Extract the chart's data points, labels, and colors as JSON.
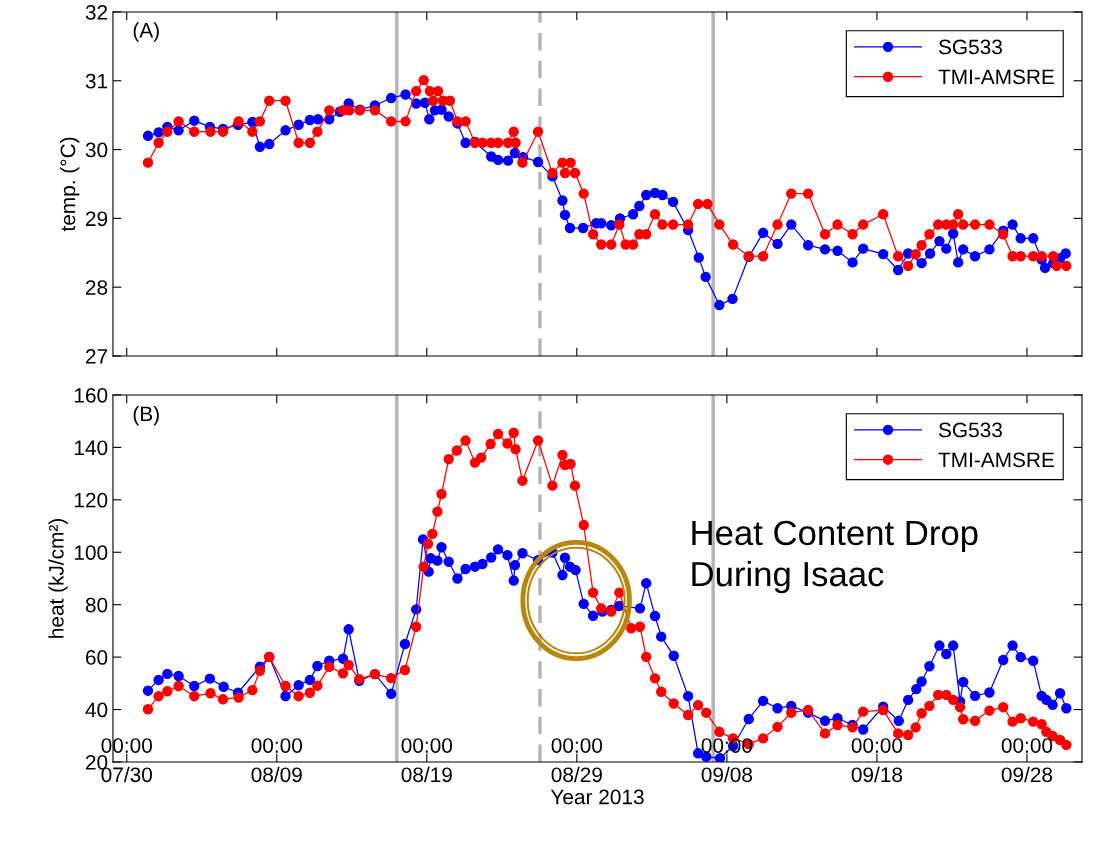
{
  "chart_data": [
    {
      "type": "line",
      "ylabel": "temp. (°C)",
      "annotations": [
        "(A)"
      ],
      "marker": "circle",
      "line_style": "solid",
      "legend": "top right",
      "grid": false,
      "tick_labels": "y",
      "xlim": [
        "2013-07-29T02:00",
        "2013-10-01T16:00"
      ],
      "ylim": [
        27,
        32
      ],
      "yticks": [
        27,
        28,
        29,
        30,
        31,
        32
      ],
      "xticks": [
        {
          "value": "2013-07-30",
          "label": null
        },
        {
          "value": "2013-08-09",
          "label": null
        },
        {
          "value": "2013-08-19",
          "label": null
        },
        {
          "value": "2013-08-29",
          "label": null
        },
        {
          "value": "2013-09-08",
          "label": null
        },
        {
          "value": "2013-09-18",
          "label": null
        },
        {
          "value": "2013-09-28",
          "label": null
        }
      ],
      "ref_lines": [
        {
          "axis": "x",
          "value": "2013-08-17",
          "color": "#b4b4b4",
          "line_style": "solid"
        },
        {
          "axis": "x",
          "value": "2013-08-26T13:00",
          "color": "#b4b4b4",
          "line_style": "dashed"
        },
        {
          "axis": "x",
          "value": "2013-09-07T02:00",
          "color": "#b4b4b4",
          "line_style": "solid"
        }
      ],
      "series": [
        {
          "name": "SG533",
          "color": "#0000ff",
          "x": [
            "2013-07-31T10:00",
            "2013-08-01T03:00",
            "2013-08-01T17:00",
            "2013-08-02T11:00",
            "2013-08-03T12:00",
            "2013-08-04T13:00",
            "2013-08-05T10:00",
            "2013-08-06T10:00",
            "2013-08-07T09:00",
            "2013-08-07T21:00",
            "2013-08-08T12:00",
            "2013-08-09T14:00",
            "2013-08-10T11:00",
            "2013-08-11T05:00",
            "2013-08-11T18:00",
            "2013-08-12T12:00",
            "2013-08-13T05:00",
            "2013-08-13T19:00",
            "2013-08-14T13:00",
            "2013-08-15T13:00",
            "2013-08-16T15:00",
            "2013-08-17T14:00",
            "2013-08-18T07:00",
            "2013-08-18T21:00",
            "2013-08-19T04:00",
            "2013-08-19T13:00",
            "2013-08-19T23:30",
            "2013-08-20T11:00",
            "2013-08-21T01:00",
            "2013-08-21T14:00",
            "2013-08-22T05:00",
            "2013-08-23T07:00",
            "2013-08-23T18:00",
            "2013-08-24T10:00",
            "2013-08-24T21:00",
            "2013-08-25T10:00",
            "2013-08-26T10:00",
            "2013-08-27T09:00",
            "2013-08-28T01:00",
            "2013-08-28T05:00",
            "2013-08-28T13:00",
            "2013-08-29T10:00",
            "2013-08-30T07:00",
            "2013-08-30T15:00",
            "2013-08-31T07:00",
            "2013-08-31T21:00",
            "2013-09-01T18:00",
            "2013-09-02T04:00",
            "2013-09-02T15:00",
            "2013-09-03T05:00",
            "2013-09-03T17:00",
            "2013-09-04T10:00",
            "2013-09-05T10:00",
            "2013-09-06T03:00",
            "2013-09-06T14:00",
            "2013-09-07T12:00",
            "2013-09-08T09:00",
            "2013-09-09T11:00",
            "2013-09-10T10:00",
            "2013-09-11T09:00",
            "2013-09-12T07:00",
            "2013-09-13T10:00",
            "2013-09-14T13:00",
            "2013-09-15T09:00",
            "2013-09-16T09:00",
            "2013-09-17T02:00",
            "2013-09-18T10:00",
            "2013-09-19T10:00",
            "2013-09-20T02:00",
            "2013-09-20T23:30",
            "2013-09-21T13:00",
            "2013-09-22T04:00",
            "2013-09-22T15:00",
            "2013-09-23T02:00",
            "2013-09-23T10:00",
            "2013-09-23T18:00",
            "2013-09-24T13:00",
            "2013-09-25T12:00",
            "2013-09-26T10:00",
            "2013-09-27T01:00",
            "2013-09-27T14:00",
            "2013-09-28T10:00",
            "2013-09-28T23:30",
            "2013-09-29T05:00",
            "2013-09-29T18:00",
            "2013-09-30T05:00",
            "2013-09-30T14:00"
          ],
          "values": [
            30.2,
            30.25,
            30.33,
            30.28,
            30.42,
            30.33,
            30.3,
            30.36,
            30.4,
            30.04,
            30.08,
            30.28,
            30.36,
            30.43,
            30.44,
            30.44,
            30.55,
            30.67,
            30.58,
            30.64,
            30.75,
            30.8,
            30.67,
            30.68,
            30.44,
            30.57,
            30.58,
            30.48,
            30.38,
            30.1,
            30.11,
            29.9,
            29.85,
            29.84,
            29.95,
            29.89,
            29.82,
            29.61,
            29.26,
            29.05,
            28.86,
            28.86,
            28.93,
            28.93,
            28.9,
            29.0,
            29.06,
            29.18,
            29.34,
            29.37,
            29.34,
            29.24,
            28.83,
            28.43,
            28.15,
            27.74,
            27.83,
            28.44,
            28.79,
            28.63,
            28.91,
            28.61,
            28.55,
            28.53,
            28.36,
            28.56,
            28.48,
            28.25,
            28.49,
            28.35,
            28.49,
            28.67,
            28.56,
            28.78,
            28.36,
            28.55,
            28.45,
            28.55,
            28.82,
            28.91,
            28.71,
            28.71,
            28.4,
            28.28,
            28.35,
            28.42,
            28.49
          ]
        },
        {
          "name": "TMI-AMSRE",
          "color": "#ff0000",
          "x": [
            "2013-07-31T10:00",
            "2013-08-01T03:00",
            "2013-08-01T17:00",
            "2013-08-02T11:00",
            "2013-08-03T12:00",
            "2013-08-04T14:00",
            "2013-08-05T10:00",
            "2013-08-06T11:00",
            "2013-08-07T09:00",
            "2013-08-07T21:00",
            "2013-08-08T12:00",
            "2013-08-09T14:00",
            "2013-08-10T11:00",
            "2013-08-11T05:00",
            "2013-08-11T17:00",
            "2013-08-12T12:00",
            "2013-08-13T10:00",
            "2013-08-13T20:00",
            "2013-08-14T13:00",
            "2013-08-15T13:00",
            "2013-08-16T15:00",
            "2013-08-17T14:00",
            "2013-08-18T07:00",
            "2013-08-18T19:00",
            "2013-08-19T05:00",
            "2013-08-19T10:00",
            "2013-08-19T18:00",
            "2013-08-20T02:00",
            "2013-08-20T13:00",
            "2013-08-21T01:00",
            "2013-08-21T14:00",
            "2013-08-22T05:00",
            "2013-08-22T17:00",
            "2013-08-23T07:00",
            "2013-08-23T18:00",
            "2013-08-24T10:00",
            "2013-08-24T19:00",
            "2013-08-24T22:00",
            "2013-08-25T09:00",
            "2013-08-26T10:00",
            "2013-08-27T09:00",
            "2013-08-28T01:00",
            "2013-08-28T05:00",
            "2013-08-28T14:00",
            "2013-08-28T21:00",
            "2013-08-29T11:00",
            "2013-08-30T02:00",
            "2013-08-30T15:00",
            "2013-08-31T07:00",
            "2013-08-31T20:00",
            "2013-09-01T06:00",
            "2013-09-01T18:00",
            "2013-09-02T04:00",
            "2013-09-02T15:00",
            "2013-09-03T05:00",
            "2013-09-03T17:00",
            "2013-09-04T10:00",
            "2013-09-05T10:00",
            "2013-09-06T02:00",
            "2013-09-06T17:00",
            "2013-09-07T12:00",
            "2013-09-08T10:00",
            "2013-09-09T11:00",
            "2013-09-10T10:00",
            "2013-09-11T09:00",
            "2013-09-12T07:00",
            "2013-09-13T10:00",
            "2013-09-14T13:00",
            "2013-09-15T09:00",
            "2013-09-16T09:00",
            "2013-09-17T02:00",
            "2013-09-18T10:00",
            "2013-09-19T10:00",
            "2013-09-20T02:00",
            "2013-09-20T14:00",
            "2013-09-20T23:30",
            "2013-09-21T12:00",
            "2013-09-22T02:00",
            "2013-09-22T15:00",
            "2013-09-23T02:00",
            "2013-09-23T10:00",
            "2013-09-23T18:00",
            "2013-09-24T13:00",
            "2013-09-25T12:00",
            "2013-09-26T10:00",
            "2013-09-27T01:00",
            "2013-09-27T14:00",
            "2013-09-28T10:00",
            "2013-09-28T23:30",
            "2013-09-29T18:00",
            "2013-09-29T23:30",
            "2013-09-30T15:00"
          ],
          "values": [
            29.81,
            30.1,
            30.26,
            30.41,
            30.26,
            30.26,
            30.26,
            30.41,
            30.26,
            30.41,
            30.71,
            30.71,
            30.1,
            30.1,
            30.26,
            30.57,
            30.57,
            30.57,
            30.57,
            30.57,
            30.41,
            30.41,
            30.85,
            31.01,
            30.85,
            30.71,
            30.85,
            30.71,
            30.71,
            30.41,
            30.41,
            30.1,
            30.1,
            30.1,
            30.1,
            30.1,
            30.26,
            30.1,
            29.81,
            30.26,
            29.66,
            29.81,
            29.66,
            29.81,
            29.66,
            29.36,
            28.77,
            28.62,
            28.62,
            28.91,
            28.62,
            28.62,
            28.77,
            28.77,
            29.06,
            28.91,
            28.91,
            28.91,
            29.21,
            29.21,
            28.91,
            28.62,
            28.45,
            28.45,
            28.91,
            29.36,
            29.36,
            28.77,
            28.91,
            28.77,
            28.91,
            29.06,
            28.45,
            28.31,
            28.48,
            28.61,
            28.77,
            28.91,
            28.91,
            28.91,
            29.06,
            28.91,
            28.91,
            28.91,
            28.77,
            28.45,
            28.45,
            28.45,
            28.45,
            28.45,
            28.31,
            28.31
          ]
        }
      ]
    },
    {
      "type": "line",
      "ylabel": "heat (kJ/cm²)",
      "xlabel": "Year 2013",
      "marker": "circle",
      "line_style": "solid",
      "legend": "top right",
      "grid": false,
      "annotations": [
        "(B)",
        "Heat Content Drop\nDuring Isaac",
        "00:00",
        "00:00",
        "00:00",
        "00:00",
        "00:00",
        "00:00",
        "00:00"
      ],
      "xlim": [
        "2013-07-29T02:00",
        "2013-10-01T16:00"
      ],
      "ylim": [
        20,
        160
      ],
      "yticks": [
        20,
        40,
        60,
        80,
        100,
        120,
        140,
        160
      ],
      "xticks": [
        {
          "value": "2013-07-30",
          "label": "07/30"
        },
        {
          "value": "2013-08-09",
          "label": "08/09"
        },
        {
          "value": "2013-08-19",
          "label": "08/19"
        },
        {
          "value": "2013-08-29",
          "label": "08/29"
        },
        {
          "value": "2013-09-08",
          "label": "09/08"
        },
        {
          "value": "2013-09-18",
          "label": "09/18"
        },
        {
          "value": "2013-09-28",
          "label": "09/28"
        }
      ],
      "ref_lines": [
        {
          "axis": "x",
          "value": "2013-08-17",
          "color": "#b4b4b4",
          "line_style": "solid"
        },
        {
          "axis": "x",
          "value": "2013-08-26T13:00",
          "color": "#b4b4b4",
          "line_style": "dashed"
        },
        {
          "axis": "x",
          "value": "2013-09-07T02:00",
          "color": "#b4b4b4",
          "line_style": "solid"
        }
      ],
      "series": [
        {
          "name": "SG533",
          "color": "#0000ff",
          "x": [
            "2013-07-31T10:00",
            "2013-08-01T03:00",
            "2013-08-01T17:00",
            "2013-08-02T11:00",
            "2013-08-03T12:00",
            "2013-08-04T13:00",
            "2013-08-05T11:00",
            "2013-08-06T10:00",
            "2013-08-07T21:00",
            "2013-08-08T12:00",
            "2013-08-09T14:00",
            "2013-08-10T11:00",
            "2013-08-11T05:00",
            "2013-08-11T17:00",
            "2013-08-12T12:00",
            "2013-08-13T10:00",
            "2013-08-13T19:00",
            "2013-08-14T12:00",
            "2013-08-15T13:00",
            "2013-08-16T15:00",
            "2013-08-17T13:00",
            "2013-08-18T07:00",
            "2013-08-18T18:00",
            "2013-08-19T03:00",
            "2013-08-19T06:00",
            "2013-08-19T17:00",
            "2013-08-19T23:30",
            "2013-08-20T11:00",
            "2013-08-21T01:00",
            "2013-08-21T14:00",
            "2013-08-22T05:00",
            "2013-08-22T17:00",
            "2013-08-23T07:00",
            "2013-08-23T18:00",
            "2013-08-24T09:00",
            "2013-08-24T19:00",
            "2013-08-24T21:00",
            "2013-08-25T09:00",
            "2013-08-26T10:00",
            "2013-08-27T09:00",
            "2013-08-28T01:00",
            "2013-08-28T05:00",
            "2013-08-28T13:00",
            "2013-08-28T22:00",
            "2013-08-29T11:00",
            "2013-08-30T02:00",
            "2013-08-30T17:00",
            "2013-08-31T07:00",
            "2013-08-31T20:00",
            "2013-09-02T05:00",
            "2013-09-02T15:00",
            "2013-09-03T05:00",
            "2013-09-03T15:00",
            "2013-09-04T11:00",
            "2013-09-05T10:00",
            "2013-09-06T02:00",
            "2013-09-06T15:00",
            "2013-09-07T13:00",
            "2013-09-08T10:00",
            "2013-09-09T11:00",
            "2013-09-10T10:00",
            "2013-09-11T09:00",
            "2013-09-12T07:00",
            "2013-09-13T10:00",
            "2013-09-14T13:00",
            "2013-09-15T09:00",
            "2013-09-16T09:00",
            "2013-09-17T02:00",
            "2013-09-18T10:00",
            "2013-09-19T11:00",
            "2013-09-20T02:00",
            "2013-09-20T15:00",
            "2013-09-20T23:30",
            "2013-09-21T12:00",
            "2013-09-22T04:00",
            "2013-09-22T15:00",
            "2013-09-23T02:00",
            "2013-09-23T13:00",
            "2013-09-23T18:00",
            "2013-09-24T13:00",
            "2013-09-25T12:00",
            "2013-09-26T10:00",
            "2013-09-27T01:00",
            "2013-09-27T14:00",
            "2013-09-28T10:00",
            "2013-09-28T23:30",
            "2013-09-29T07:00",
            "2013-09-29T17:00",
            "2013-09-30T05:00",
            "2013-09-30T15:00"
          ],
          "values": [
            47.2,
            51.3,
            53.6,
            52.8,
            49.0,
            51.8,
            48.7,
            46.4,
            56.3,
            60.1,
            45.1,
            49.3,
            51.3,
            56.6,
            58.6,
            59.4,
            70.6,
            51.0,
            53.5,
            46.0,
            65.0,
            78.2,
            104.9,
            92.6,
            97.7,
            96.8,
            101.9,
            96.4,
            90.0,
            93.6,
            94.5,
            95.5,
            98.0,
            101.1,
            98.9,
            89.2,
            95.1,
            99.6,
            97.0,
            99.9,
            91.3,
            97.9,
            94.5,
            93.2,
            80.3,
            75.8,
            77.4,
            78.0,
            79.5,
            78.6,
            88.2,
            75.7,
            67.8,
            60.5,
            45.1,
            23.3,
            22.0,
            21.4,
            26.1,
            36.4,
            43.3,
            40.5,
            41.4,
            38.8,
            35.7,
            36.7,
            34.1,
            32.4,
            41.1,
            35.7,
            43.7,
            47.8,
            50.7,
            56.5,
            64.4,
            61.2,
            64.4,
            43.1,
            50.5,
            45.2,
            46.5,
            58.9,
            64.4,
            60.0,
            58.6,
            45.2,
            43.7,
            41.8,
            46.2,
            40.5
          ]
        },
        {
          "name": "TMI-AMSRE",
          "color": "#ff0000",
          "x": [
            "2013-07-31T10:00",
            "2013-08-01T03:00",
            "2013-08-01T17:00",
            "2013-08-02T11:00",
            "2013-08-03T12:00",
            "2013-08-04T14:00",
            "2013-08-05T10:00",
            "2013-08-06T11:00",
            "2013-08-07T09:00",
            "2013-08-07T21:00",
            "2013-08-08T12:00",
            "2013-08-09T14:00",
            "2013-08-10T11:00",
            "2013-08-11T05:00",
            "2013-08-11T17:00",
            "2013-08-12T12:00",
            "2013-08-13T10:00",
            "2013-08-13T19:00",
            "2013-08-14T12:00",
            "2013-08-15T13:00",
            "2013-08-16T15:00",
            "2013-08-17T13:00",
            "2013-08-18T07:00",
            "2013-08-18T19:00",
            "2013-08-19T02:00",
            "2013-08-19T09:00",
            "2013-08-19T17:00",
            "2013-08-19T23:30",
            "2013-08-20T11:00",
            "2013-08-21T00:00",
            "2013-08-21T14:00",
            "2013-08-22T05:00",
            "2013-08-22T15:00",
            "2013-08-23T06:00",
            "2013-08-23T18:00",
            "2013-08-24T09:00",
            "2013-08-24T19:00",
            "2013-08-24T22:00",
            "2013-08-25T09:00",
            "2013-08-26T10:00",
            "2013-08-27T09:00",
            "2013-08-28T01:00",
            "2013-08-28T05:00",
            "2013-08-28T14:00",
            "2013-08-28T21:00",
            "2013-08-29T11:00",
            "2013-08-30T02:00",
            "2013-08-30T15:00",
            "2013-08-31T07:00",
            "2013-08-31T20:00",
            "2013-09-01T15:00",
            "2013-09-02T05:00",
            "2013-09-02T15:00",
            "2013-09-03T05:00",
            "2013-09-03T15:00",
            "2013-09-04T11:00",
            "2013-09-05T10:00",
            "2013-09-06T02:00",
            "2013-09-06T15:00",
            "2013-09-07T12:00",
            "2013-09-08T10:00",
            "2013-09-09T11:00",
            "2013-09-10T10:00",
            "2013-09-11T09:00",
            "2013-09-12T07:00",
            "2013-09-13T10:00",
            "2013-09-14T13:00",
            "2013-09-15T09:00",
            "2013-09-16T09:00",
            "2013-09-17T02:00",
            "2013-09-18T10:00",
            "2013-09-19T10:00",
            "2013-09-20T02:00",
            "2013-09-20T14:00",
            "2013-09-20T23:30",
            "2013-09-21T12:00",
            "2013-09-22T02:00",
            "2013-09-22T15:00",
            "2013-09-23T02:00",
            "2013-09-23T13:00",
            "2013-09-23T18:00",
            "2013-09-24T13:00",
            "2013-09-25T12:00",
            "2013-09-26T10:00",
            "2013-09-27T01:00",
            "2013-09-27T14:00",
            "2013-09-28T10:00",
            "2013-09-28T23:30",
            "2013-09-29T07:00",
            "2013-09-29T17:00",
            "2013-09-30T05:00",
            "2013-09-30T15:00"
          ],
          "values": [
            40.1,
            45.1,
            47.0,
            49.0,
            45.1,
            46.2,
            43.9,
            44.6,
            47.4,
            54.8,
            60.1,
            49.0,
            45.1,
            46.4,
            49.1,
            56.3,
            53.8,
            57.0,
            51.6,
            53.5,
            52.0,
            55.1,
            71.6,
            94.5,
            103.2,
            107.0,
            115.5,
            122.2,
            135.5,
            138.8,
            142.6,
            134.2,
            136.1,
            141.3,
            145.1,
            141.5,
            145.6,
            139.3,
            127.3,
            142.6,
            125.4,
            137.1,
            133.3,
            133.7,
            125.4,
            110.4,
            84.6,
            78.6,
            77.4,
            84.6,
            71.0,
            71.6,
            60.1,
            51.9,
            46.8,
            42.3,
            37.9,
            41.7,
            38.8,
            31.5,
            29.0,
            26.8,
            29.0,
            33.4,
            38.8,
            39.8,
            30.9,
            34.1,
            33.2,
            39.2,
            39.8,
            30.9,
            30.3,
            33.2,
            38.6,
            41.4,
            45.6,
            45.6,
            43.7,
            40.9,
            36.3,
            35.7,
            39.6,
            40.9,
            35.4,
            36.7,
            35.4,
            34.4,
            31.5,
            29.9,
            28.4,
            26.5
          ]
        }
      ]
    }
  ]
}
